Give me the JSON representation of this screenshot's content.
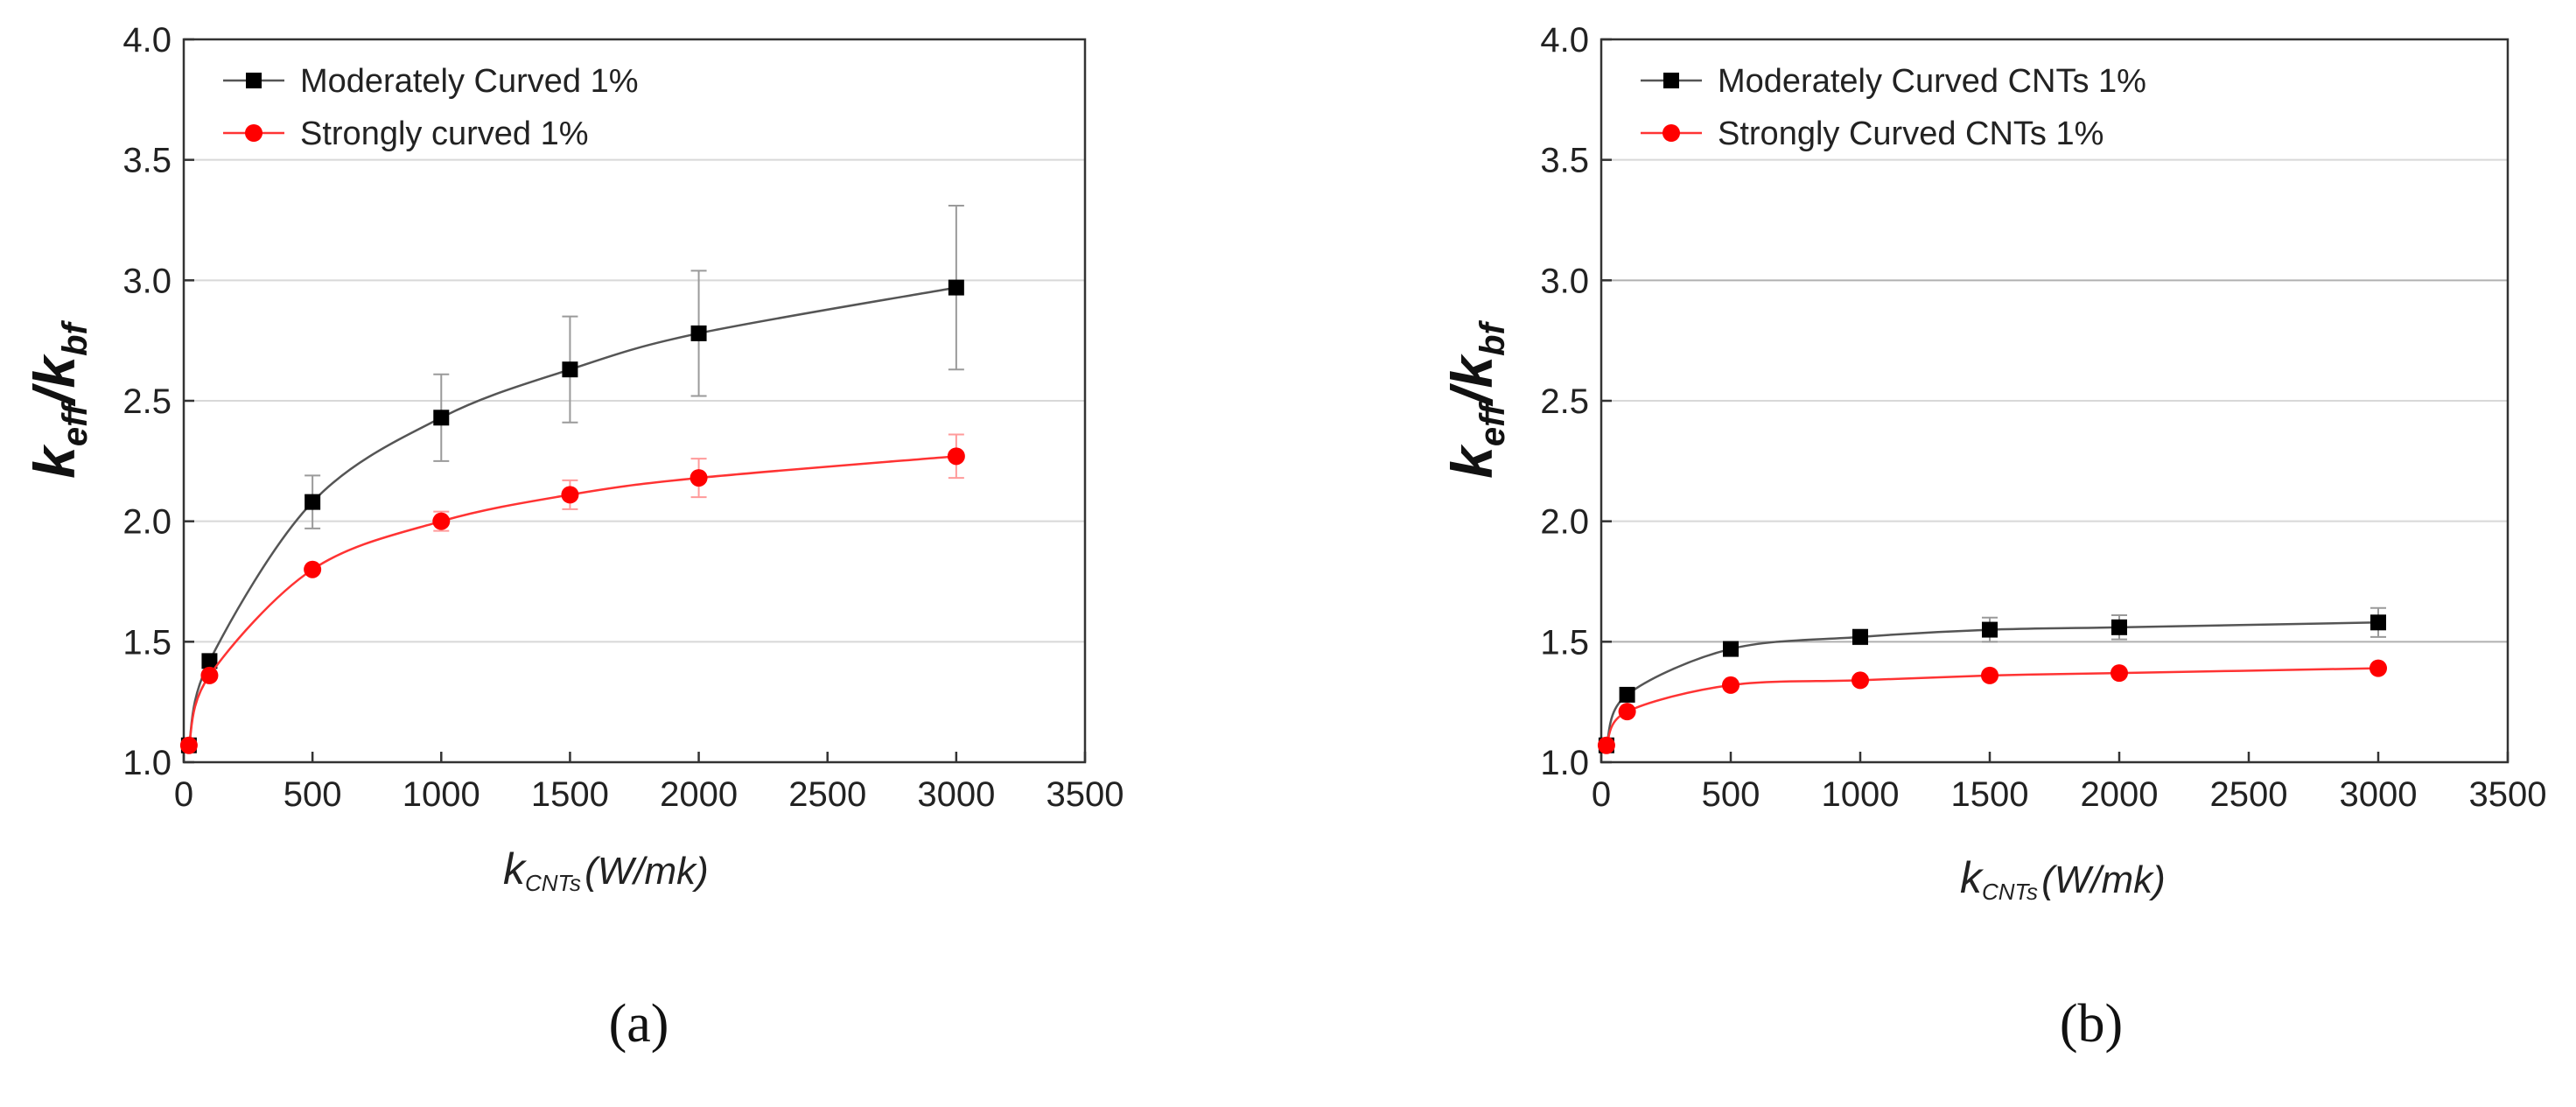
{
  "chart_data": [
    {
      "type": "line",
      "panel": "a",
      "caption": "(a)",
      "ylabel": {
        "main_1": "k",
        "sub_1": "eff",
        "slash": "/",
        "main_2": "k",
        "sub_2": "bf"
      },
      "xlabel": {
        "main": "k",
        "sub": "CNTs",
        "unit": "(W/mk)"
      },
      "xlim": [
        0,
        3500
      ],
      "ylim": [
        1.0,
        4.0
      ],
      "xticks": [
        "0",
        "500",
        "1000",
        "1500",
        "2000",
        "2500",
        "3000",
        "3500"
      ],
      "xtick_values": [
        0,
        500,
        1000,
        1500,
        2000,
        2500,
        3000,
        3500
      ],
      "yticks": [
        "1.0",
        "1.5",
        "2.0",
        "2.5",
        "3.0",
        "3.5",
        "4.0"
      ],
      "ytick_values": [
        1.0,
        1.5,
        2.0,
        2.5,
        3.0,
        3.5,
        4.0
      ],
      "grid": "horizontal",
      "legend_position": "top-left",
      "series": [
        {
          "name": "Moderately Curved 1%",
          "color": "#000000",
          "line_color": "#555555",
          "marker": "square",
          "x": [
            20,
            100,
            500,
            1000,
            1500,
            2000,
            3000
          ],
          "y": [
            1.07,
            1.42,
            2.08,
            2.43,
            2.63,
            2.78,
            2.97
          ],
          "err": [
            0.0,
            0.0,
            0.11,
            0.18,
            0.22,
            0.26,
            0.34
          ]
        },
        {
          "name": "Strongly curved 1%",
          "color": "#ff0000",
          "line_color": "#ff3333",
          "marker": "circle",
          "x": [
            20,
            100,
            500,
            1000,
            1500,
            2000,
            3000
          ],
          "y": [
            1.07,
            1.36,
            1.8,
            2.0,
            2.11,
            2.18,
            2.27
          ],
          "err": [
            0.0,
            0.0,
            0.0,
            0.04,
            0.06,
            0.08,
            0.09
          ]
        }
      ]
    },
    {
      "type": "line",
      "panel": "b",
      "caption": "(b)",
      "ylabel": {
        "main_1": "k",
        "sub_1": "eff",
        "slash": "/",
        "main_2": "k",
        "sub_2": "bf"
      },
      "xlabel": {
        "main": "k",
        "sub": "CNTs",
        "unit": "(W/mk)"
      },
      "xlim": [
        0,
        3500
      ],
      "ylim": [
        1.0,
        4.0
      ],
      "xticks": [
        "0",
        "500",
        "1000",
        "1500",
        "2000",
        "2500",
        "3000",
        "3500"
      ],
      "xtick_values": [
        0,
        500,
        1000,
        1500,
        2000,
        2500,
        3000,
        3500
      ],
      "yticks": [
        "1.0",
        "1.5",
        "2.0",
        "2.5",
        "3.0",
        "3.5",
        "4.0"
      ],
      "ytick_values": [
        1.0,
        1.5,
        2.0,
        2.5,
        3.0,
        3.5,
        4.0
      ],
      "grid": "horizontal",
      "legend_position": "top-left",
      "series": [
        {
          "name": "Moderately Curved CNTs 1%",
          "color": "#000000",
          "line_color": "#555555",
          "marker": "square",
          "x": [
            20,
            100,
            500,
            1000,
            1500,
            2000,
            3000
          ],
          "y": [
            1.07,
            1.28,
            1.47,
            1.52,
            1.55,
            1.56,
            1.58
          ],
          "err": [
            0.0,
            0.0,
            0.0,
            0.03,
            0.05,
            0.05,
            0.06
          ]
        },
        {
          "name": "Strongly Curved CNTs 1%",
          "color": "#ff0000",
          "line_color": "#ff3333",
          "marker": "circle",
          "x": [
            20,
            100,
            500,
            1000,
            1500,
            2000,
            3000
          ],
          "y": [
            1.07,
            1.21,
            1.32,
            1.34,
            1.36,
            1.37,
            1.39
          ],
          "err": [
            0.0,
            0.0,
            0.0,
            0.0,
            0.0,
            0.0,
            0.0
          ]
        }
      ]
    }
  ]
}
